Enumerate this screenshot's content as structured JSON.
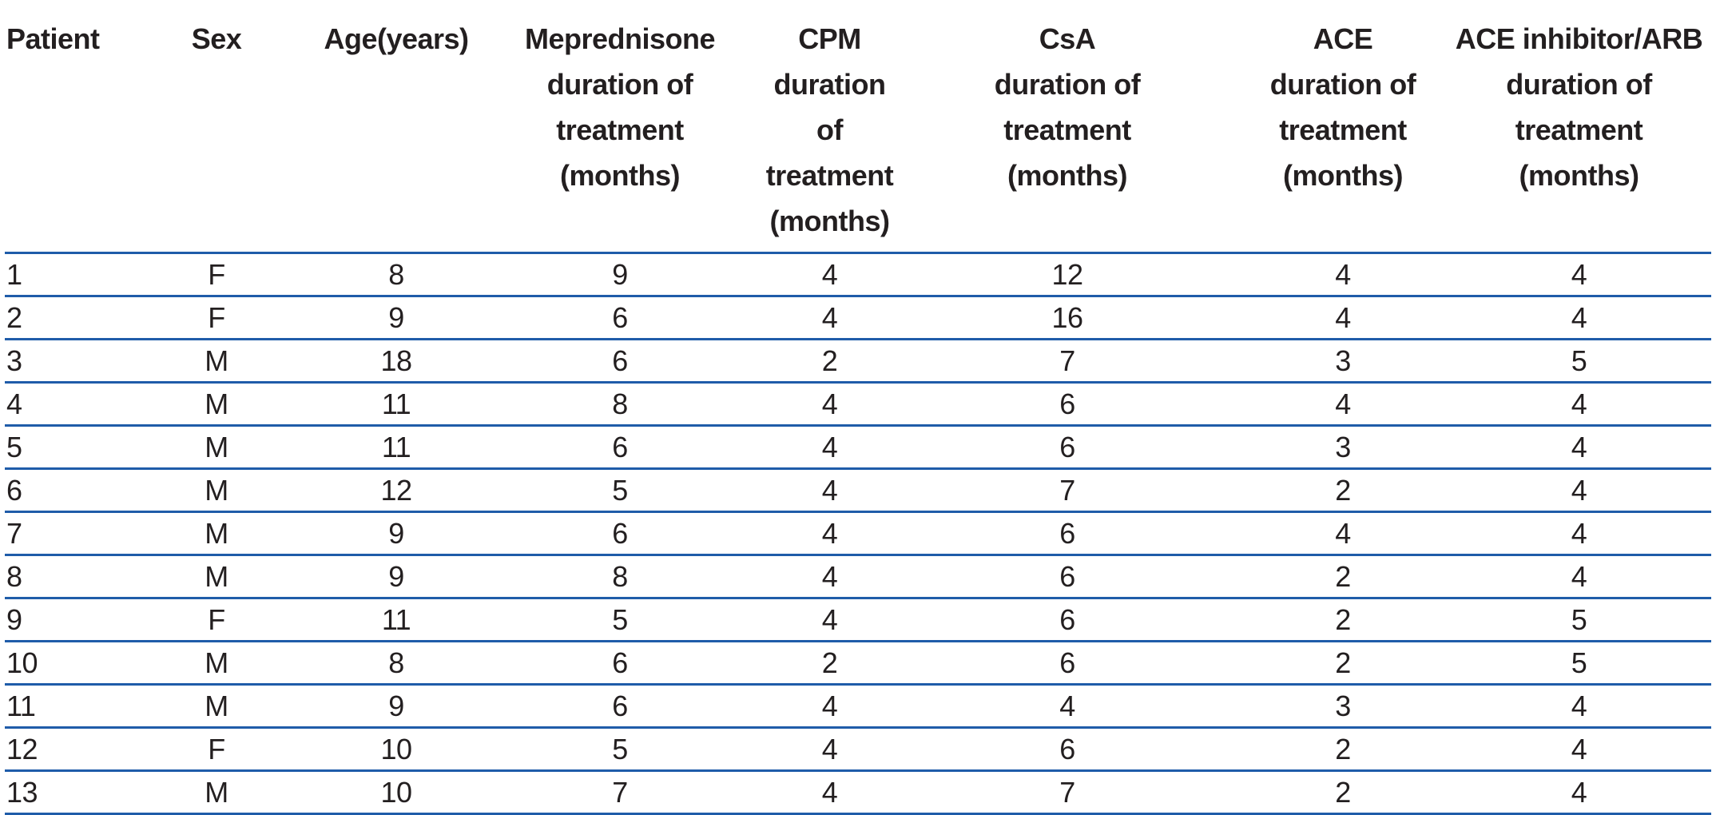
{
  "page": {
    "background_color": "#ffffff",
    "rule_color": "#1f5ca9",
    "text_color": "#231f20"
  },
  "table": {
    "columns": [
      {
        "id": "patient",
        "align": "left",
        "lines": [
          "Patient"
        ]
      },
      {
        "id": "sex",
        "align": "center",
        "lines": [
          "Sex"
        ]
      },
      {
        "id": "age",
        "align": "center",
        "lines": [
          "Age(years)"
        ]
      },
      {
        "id": "meprednisone",
        "align": "center",
        "lines": [
          "Meprednisone",
          "duration of",
          "treatment",
          "(months)"
        ]
      },
      {
        "id": "cpm",
        "align": "center",
        "lines": [
          "CPM",
          "duration of",
          "treatment",
          "(months)"
        ]
      },
      {
        "id": "csa",
        "align": "center",
        "lines": [
          "CsA",
          "duration of",
          "treatment",
          "(months)"
        ]
      },
      {
        "id": "ace",
        "align": "center",
        "lines": [
          "ACE",
          "duration of",
          "treatment",
          "(months)"
        ]
      },
      {
        "id": "ace-inhibitor-arb",
        "align": "center",
        "lines": [
          "ACE inhibitor/ARB",
          "duration of",
          "treatment",
          "(months)"
        ]
      }
    ],
    "rows": [
      [
        "1",
        "F",
        "8",
        "9",
        "4",
        "12",
        "4",
        "4"
      ],
      [
        "2",
        "F",
        "9",
        "6",
        "4",
        "16",
        "4",
        "4"
      ],
      [
        "3",
        "M",
        "18",
        "6",
        "2",
        "7",
        "3",
        "5"
      ],
      [
        "4",
        "M",
        "11",
        "8",
        "4",
        "6",
        "4",
        "4"
      ],
      [
        "5",
        "M",
        "11",
        "6",
        "4",
        "6",
        "3",
        "4"
      ],
      [
        "6",
        "M",
        "12",
        "5",
        "4",
        "7",
        "2",
        "4"
      ],
      [
        "7",
        "M",
        "9",
        "6",
        "4",
        "6",
        "4",
        "4"
      ],
      [
        "8",
        "M",
        "9",
        "8",
        "4",
        "6",
        "2",
        "4"
      ],
      [
        "9",
        "F",
        "11",
        "5",
        "4",
        "6",
        "2",
        "5"
      ],
      [
        "10",
        "M",
        "8",
        "6",
        "2",
        "6",
        "2",
        "5"
      ],
      [
        "11",
        "M",
        "9",
        "6",
        "4",
        "4",
        "3",
        "4"
      ],
      [
        "12",
        "F",
        "10",
        "5",
        "4",
        "6",
        "2",
        "4"
      ],
      [
        "13",
        "M",
        "10",
        "7",
        "4",
        "7",
        "2",
        "4"
      ]
    ]
  }
}
